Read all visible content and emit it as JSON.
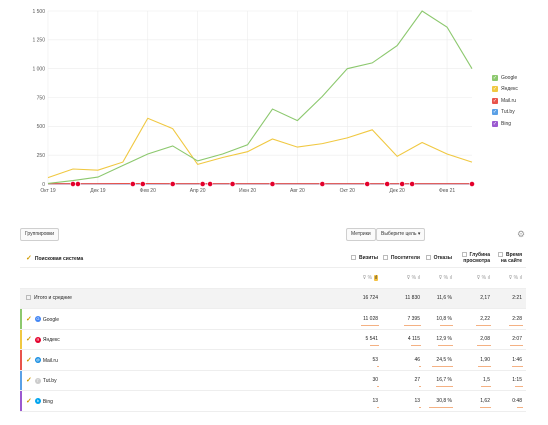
{
  "chart_data": {
    "type": "line",
    "x": [
      "Окт 19",
      "Ноя 19",
      "Дек 19",
      "Янв 20",
      "Фев 20",
      "Мар 20",
      "Апр 20",
      "Май 20",
      "Июн 20",
      "Июл 20",
      "Авг 20",
      "Сен 20",
      "Окт 20",
      "Ноя 20",
      "Дек 20",
      "Янв 21",
      "Фев 21",
      "Мар 21"
    ],
    "x_tick_labels": [
      "Окт 19",
      "Дек 19",
      "Фев 20",
      "Апр 20",
      "Июн 20",
      "Авг 20",
      "Окт 20",
      "Дек 20",
      "Фев 21"
    ],
    "y_tick_labels": [
      "0",
      "250",
      "500",
      "750",
      "1 000",
      "1 250",
      "1 500"
    ],
    "ylim": [
      0,
      1500
    ],
    "grid": true,
    "legend_position": "right",
    "series": [
      {
        "name": "Google",
        "color": "#8cc86e",
        "values": [
          5,
          30,
          60,
          160,
          260,
          330,
          200,
          260,
          340,
          650,
          550,
          760,
          1000,
          1050,
          1200,
          1500,
          1360,
          1000
        ]
      },
      {
        "name": "Яндекс",
        "color": "#f0c841",
        "values": [
          55,
          130,
          120,
          190,
          570,
          480,
          170,
          230,
          280,
          390,
          320,
          350,
          400,
          470,
          240,
          360,
          260,
          190
        ]
      },
      {
        "name": "Mail.ru",
        "color": "#e8534b",
        "values": [
          3,
          3,
          3,
          4,
          4,
          3,
          3,
          3,
          3,
          3,
          3,
          3,
          3,
          3,
          3,
          3,
          3,
          3
        ]
      },
      {
        "name": "Tut.by",
        "color": "#5aa0e6",
        "values": [
          2,
          2,
          2,
          2,
          2,
          2,
          2,
          2,
          2,
          2,
          2,
          2,
          2,
          2,
          2,
          2,
          2,
          2
        ]
      },
      {
        "name": "Bing",
        "color": "#9b59d0",
        "values": [
          1,
          1,
          1,
          1,
          1,
          1,
          1,
          1,
          1,
          1,
          1,
          1,
          1,
          1,
          1,
          1,
          1,
          1
        ]
      }
    ],
    "markers_color": "#e4002b",
    "marker_positions": [
      1,
      1.2,
      3.4,
      3.8,
      5,
      6.2,
      6.5,
      7.4,
      9,
      11,
      12.8,
      13.6,
      14.2,
      14.6,
      17
    ]
  },
  "toolbar": {
    "group_label": "Группировки",
    "metrics_label": "Метрики",
    "goal_label": "Выберите цель ▾",
    "settings_icon": "⚙"
  },
  "table": {
    "dimension_header": "Поисковая система",
    "columns": [
      "Визиты",
      "Посетители",
      "Отказы",
      "Глубина просмотра",
      "Время на сайте"
    ],
    "filter_icons": "⊽ % ",
    "total": {
      "name": "Итого и средние",
      "values": [
        "16 724",
        "11 830",
        "11,6 %",
        "2,17",
        "2:21"
      ]
    },
    "rows": [
      {
        "name": "Google",
        "icon": "G",
        "color": "#8cc86e",
        "icon_bg": "#4285f4",
        "values": [
          "11 028",
          "7 395",
          "10,8 %",
          "2,22",
          "2:28"
        ],
        "shares": [
          0.66,
          0.62,
          0.48,
          0.52,
          0.5
        ]
      },
      {
        "name": "Яндекс",
        "icon": "Я",
        "color": "#f0c841",
        "icon_bg": "#e4002b",
        "values": [
          "5 541",
          "4 115",
          "12,9 %",
          "2,08",
          "2:07"
        ],
        "shares": [
          0.33,
          0.35,
          0.55,
          0.49,
          0.45
        ]
      },
      {
        "name": "Mail.ru",
        "icon": "@",
        "color": "#e8534b",
        "icon_bg": "#168de2",
        "values": [
          "53",
          "46",
          "24,5 %",
          "1,90",
          "1:46"
        ],
        "shares": [
          0.02,
          0.02,
          0.75,
          0.45,
          0.4
        ]
      },
      {
        "name": "Tut.by",
        "icon": "T",
        "color": "#5aa0e6",
        "icon_bg": "#cccccc",
        "values": [
          "30",
          "27",
          "16,7 %",
          "1,5",
          "1:15"
        ],
        "shares": [
          0.02,
          0.02,
          0.62,
          0.36,
          0.3
        ]
      },
      {
        "name": "Bing",
        "icon": "b",
        "color": "#9b59d0",
        "icon_bg": "#00a4ef",
        "values": [
          "13",
          "13",
          "30,8 %",
          "1,62",
          "0:48"
        ],
        "shares": [
          0.01,
          0.01,
          0.85,
          0.38,
          0.22
        ]
      }
    ]
  }
}
